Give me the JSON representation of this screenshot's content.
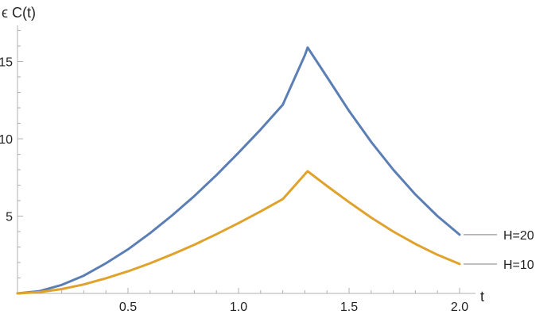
{
  "chart_data": {
    "type": "line",
    "xlabel": "t",
    "ylabel": "ϵ C(t)",
    "xlim": [
      0,
      2.0
    ],
    "ylim": [
      0,
      17
    ],
    "x_ticks": [
      "0.5",
      "1.0",
      "1.5",
      "2.0"
    ],
    "y_ticks": [
      "5",
      "10",
      "15"
    ],
    "grid": false,
    "legend": "right-end labels",
    "series": [
      {
        "name": "H=20",
        "color": "#5b7fb4",
        "x": [
          0.0,
          0.1,
          0.2,
          0.3,
          0.4,
          0.5,
          0.6,
          0.7,
          0.8,
          0.9,
          1.0,
          1.1,
          1.2,
          1.3,
          1.3125,
          1.4,
          1.5,
          1.6,
          1.7,
          1.8,
          1.9,
          2.0
        ],
        "y": [
          0.0,
          0.15,
          0.55,
          1.15,
          1.95,
          2.85,
          3.9,
          5.05,
          6.3,
          7.65,
          9.1,
          10.6,
          12.2,
          15.4,
          15.9,
          14.0,
          11.8,
          9.8,
          8.0,
          6.4,
          5.0,
          3.8
        ]
      },
      {
        "name": "H=10",
        "color": "#e0a22b",
        "x": [
          0.0,
          0.1,
          0.2,
          0.3,
          0.4,
          0.5,
          0.6,
          0.7,
          0.8,
          0.9,
          1.0,
          1.1,
          1.2,
          1.3,
          1.3125,
          1.4,
          1.5,
          1.6,
          1.7,
          1.8,
          1.9,
          2.0
        ],
        "y": [
          0.0,
          0.08,
          0.28,
          0.58,
          0.98,
          1.43,
          1.95,
          2.53,
          3.15,
          3.83,
          4.55,
          5.3,
          6.1,
          7.7,
          7.9,
          6.95,
          5.9,
          4.9,
          4.0,
          3.2,
          2.5,
          1.9
        ]
      }
    ]
  }
}
